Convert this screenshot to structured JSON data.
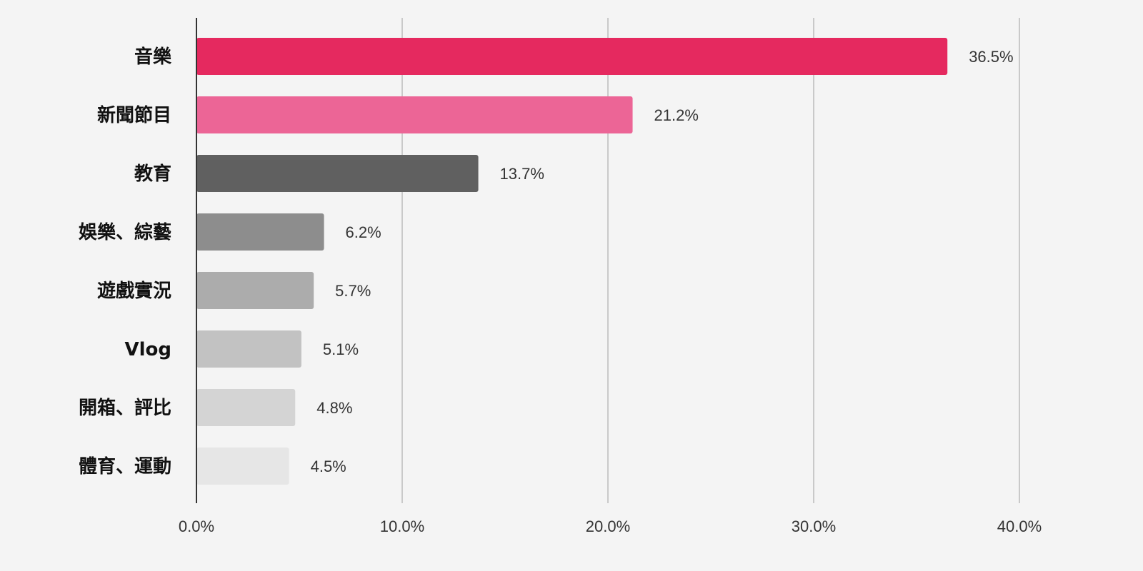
{
  "chart_data": {
    "type": "bar",
    "orientation": "horizontal",
    "title": "",
    "xlabel": "",
    "ylabel": "",
    "categories": [
      "音樂",
      "新聞節目",
      "教育",
      "娛樂、綜藝",
      "遊戲實況",
      "Vlog",
      "開箱、評比",
      "體育、運動"
    ],
    "values": [
      36.5,
      21.2,
      13.7,
      6.2,
      5.7,
      5.1,
      4.8,
      4.5
    ],
    "value_labels": [
      "36.5%",
      "21.2%",
      "13.7%",
      "6.2%",
      "5.7%",
      "5.1%",
      "4.8%",
      "4.5%"
    ],
    "bar_colors": [
      "#e5295f",
      "#ec6596",
      "#606060",
      "#8d8d8d",
      "#acacac",
      "#c2c2c2",
      "#d4d4d4",
      "#e6e6e6"
    ],
    "xlim": [
      0,
      40
    ],
    "x_ticks": [
      0,
      10,
      20,
      30,
      40
    ],
    "x_tick_labels": [
      "0.0%",
      "10.0%",
      "20.0%",
      "30.0%",
      "40.0%"
    ],
    "grid": true,
    "legend": "none"
  },
  "colors": {
    "background": "#f4f4f4",
    "gridline": "#c9c9c9",
    "axis": "#333333"
  }
}
